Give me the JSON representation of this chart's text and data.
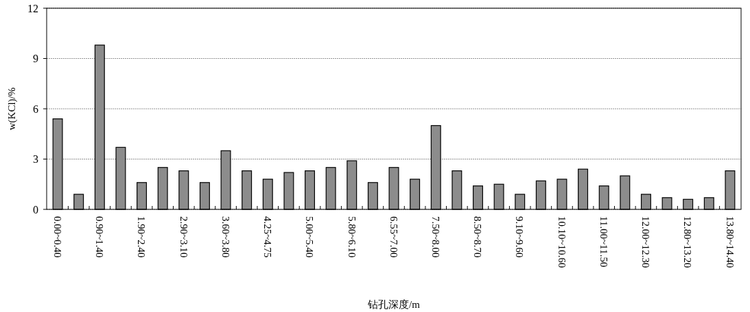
{
  "chart_data": {
    "type": "bar",
    "xlabel": "钻孔深度/m",
    "ylabel": "w(KCl)/%",
    "categories": [
      "0.00~0.40",
      null,
      "0.90~1.40",
      null,
      "1.90~2.40",
      null,
      "2.90~3.10",
      null,
      "3.60~3.80",
      null,
      "4.25~4.75",
      null,
      "5.00~5.40",
      null,
      "5.80~6.10",
      null,
      "6.55~7.00",
      null,
      "7.50~8.00",
      null,
      "8.50~8.70",
      null,
      "9.10~9.60",
      null,
      "10.10~10.60",
      null,
      "11.00~11.50",
      null,
      "12.00~12.30",
      null,
      "12.80~13.20",
      null,
      "13.80~14.40"
    ],
    "values": [
      5.4,
      0.9,
      9.8,
      3.7,
      1.6,
      2.5,
      2.3,
      1.6,
      3.5,
      2.3,
      1.8,
      2.2,
      2.3,
      2.5,
      2.9,
      1.6,
      2.5,
      1.8,
      5.0,
      2.3,
      1.4,
      1.5,
      0.9,
      1.7,
      1.8,
      2.4,
      1.4,
      2.0,
      0.9,
      0.7,
      0.6,
      0.7,
      2.3
    ],
    "color": "#8c8c8c",
    "ylim": [
      0,
      12
    ],
    "yticks": [
      0,
      3,
      6,
      9,
      12
    ],
    "grid": "y"
  }
}
